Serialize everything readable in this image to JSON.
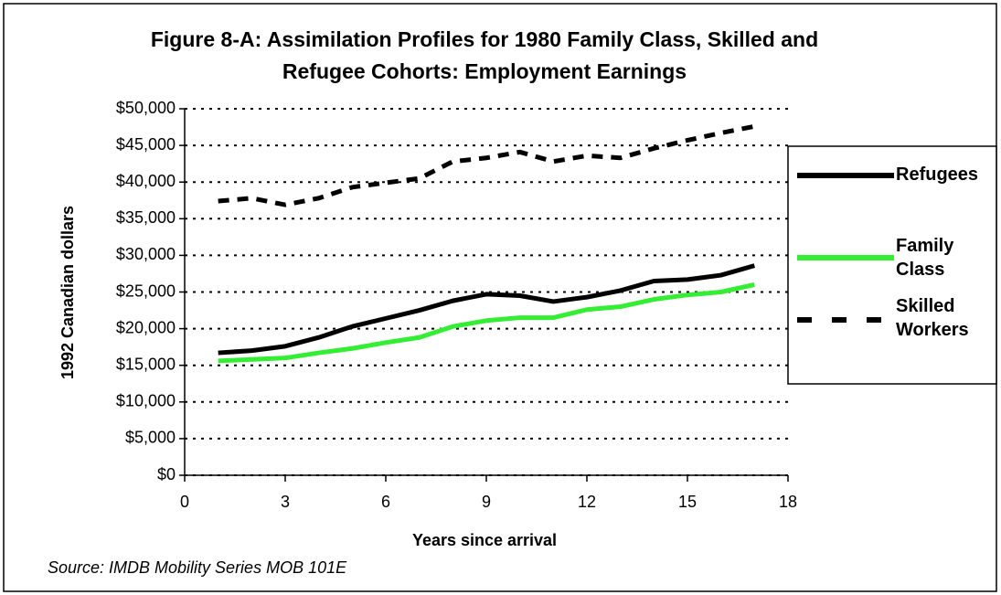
{
  "chart_data": {
    "type": "line",
    "title": "Figure 8-A: Assimilation Profiles for 1980 Family Class, Skilled and Refugee Cohorts: Employment Earnings",
    "x_label": "Years since arrival",
    "y_label": "1992 Canadian dollars",
    "source": "Source: IMDB Mobility Series MOB 101E",
    "x": [
      1,
      2,
      3,
      4,
      5,
      6,
      7,
      8,
      9,
      10,
      11,
      12,
      13,
      14,
      15,
      16,
      17
    ],
    "series": [
      {
        "name": "Refugees",
        "color": "#000000",
        "dash": false,
        "values": [
          16700,
          17000,
          17600,
          18800,
          20300,
          21400,
          22500,
          23800,
          24700,
          24500,
          23700,
          24300,
          25200,
          26500,
          26700,
          27300,
          28600
        ]
      },
      {
        "name": "Family Class",
        "color": "#33ee33",
        "dash": false,
        "values": [
          15600,
          15800,
          16000,
          16700,
          17300,
          18100,
          18800,
          20300,
          21100,
          21500,
          21500,
          22600,
          23000,
          24000,
          24600,
          25000,
          26000
        ]
      },
      {
        "name": "Skilled Workers",
        "color": "#000000",
        "dash": true,
        "values": [
          37400,
          37800,
          36900,
          37800,
          39300,
          39900,
          40500,
          42800,
          43300,
          44100,
          42800,
          43600,
          43300,
          44600,
          45700,
          46700,
          47600
        ]
      }
    ],
    "xlim": [
      0,
      18
    ],
    "xticks": [
      0,
      3,
      6,
      9,
      12,
      15,
      18
    ],
    "ylim": [
      0,
      50000
    ],
    "yticks": [
      {
        "value": 0,
        "label": "$0"
      },
      {
        "value": 5000,
        "label": "$5,000"
      },
      {
        "value": 10000,
        "label": "$10,000"
      },
      {
        "value": 15000,
        "label": "$15,000"
      },
      {
        "value": 20000,
        "label": "$20,000"
      },
      {
        "value": 25000,
        "label": "$25,000"
      },
      {
        "value": 30000,
        "label": "$30,000"
      },
      {
        "value": 35000,
        "label": "$35,000"
      },
      {
        "value": 40000,
        "label": "$40,000"
      },
      {
        "value": 45000,
        "label": "$45,000"
      },
      {
        "value": 50000,
        "label": "$50,000"
      }
    ],
    "grid": true,
    "legend": "right"
  }
}
